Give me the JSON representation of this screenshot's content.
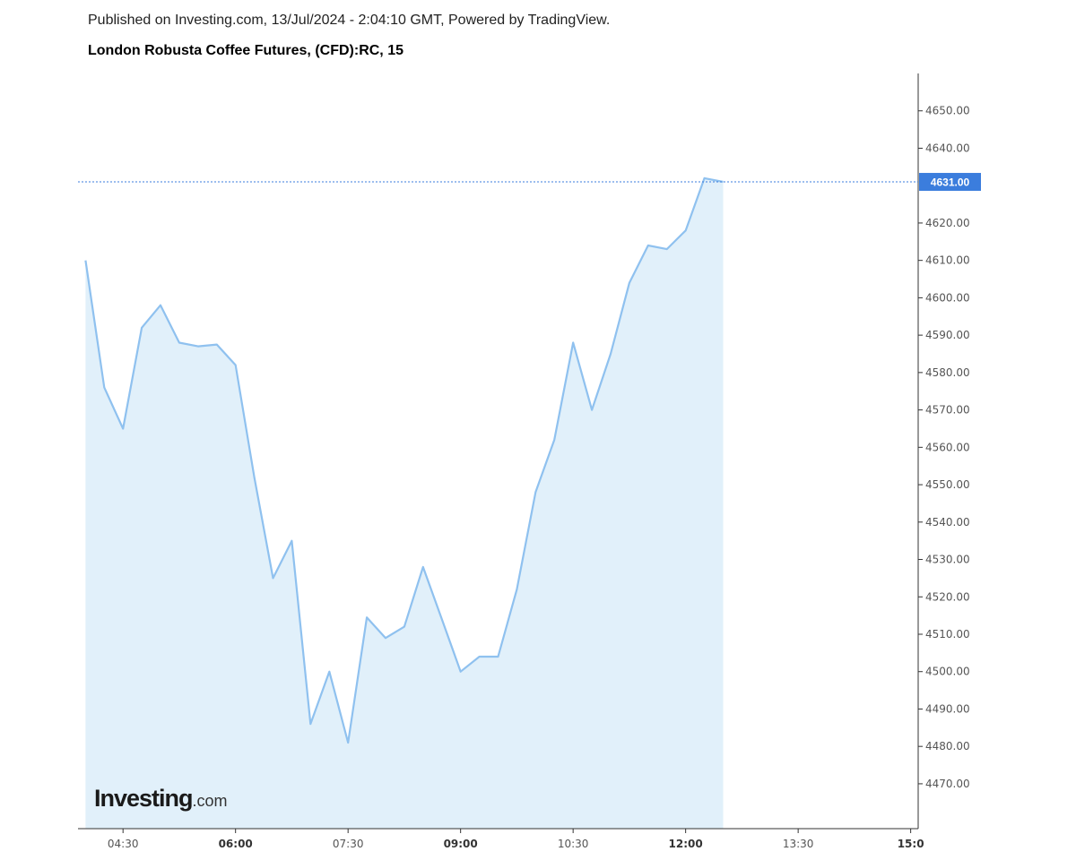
{
  "header": {
    "published": "Published on Investing.com, 13/Jul/2024 - 2:04:10 GMT, Powered by TradingView.",
    "symbol": "London Robusta Coffee Futures, (CFD):RC, 15"
  },
  "logo": {
    "main": "Investing",
    "suffix": ".com"
  },
  "colors": {
    "line": "#8fc1ef",
    "fill": "#e1f0fa",
    "last_price_bg": "#3b7ddd",
    "axis": "#333333"
  },
  "chart_data": {
    "type": "area",
    "x_axis": {
      "unit": "time",
      "ticks": [
        {
          "label": "04:30",
          "t": 4.5,
          "bold": false
        },
        {
          "label": "06:00",
          "t": 6.0,
          "bold": true
        },
        {
          "label": "07:30",
          "t": 7.5,
          "bold": false
        },
        {
          "label": "09:00",
          "t": 9.0,
          "bold": true
        },
        {
          "label": "10:30",
          "t": 10.5,
          "bold": false
        },
        {
          "label": "12:00",
          "t": 12.0,
          "bold": true
        },
        {
          "label": "13:30",
          "t": 13.5,
          "bold": false
        },
        {
          "label": "15:0",
          "t": 15.0,
          "bold": true
        }
      ],
      "range": [
        3.9,
        15.1
      ]
    },
    "y_axis": {
      "ticks": [
        "4470.00",
        "4480.00",
        "4490.00",
        "4500.00",
        "4510.00",
        "4520.00",
        "4530.00",
        "4540.00",
        "4550.00",
        "4560.00",
        "4570.00",
        "4580.00",
        "4590.00",
        "4600.00",
        "4610.00",
        "4620.00",
        "4640.00",
        "4650.00"
      ],
      "range": [
        4458,
        4660
      ]
    },
    "last_price": {
      "label": "4631.00",
      "value": 4631
    },
    "series": [
      {
        "interval_hours": 0.25,
        "start": 4.0,
        "values": [
          4610,
          4576,
          4565,
          4592,
          4598,
          4588,
          4587,
          4587.5,
          4582,
          4552,
          4525,
          4535,
          4486,
          4500,
          4481,
          4514.5,
          4509,
          4512,
          4528,
          4514,
          4500,
          4504,
          4504,
          4522,
          4548,
          4562,
          4588,
          4570,
          4585,
          4604,
          4614,
          4613,
          4618,
          4632,
          4631
        ]
      }
    ]
  }
}
